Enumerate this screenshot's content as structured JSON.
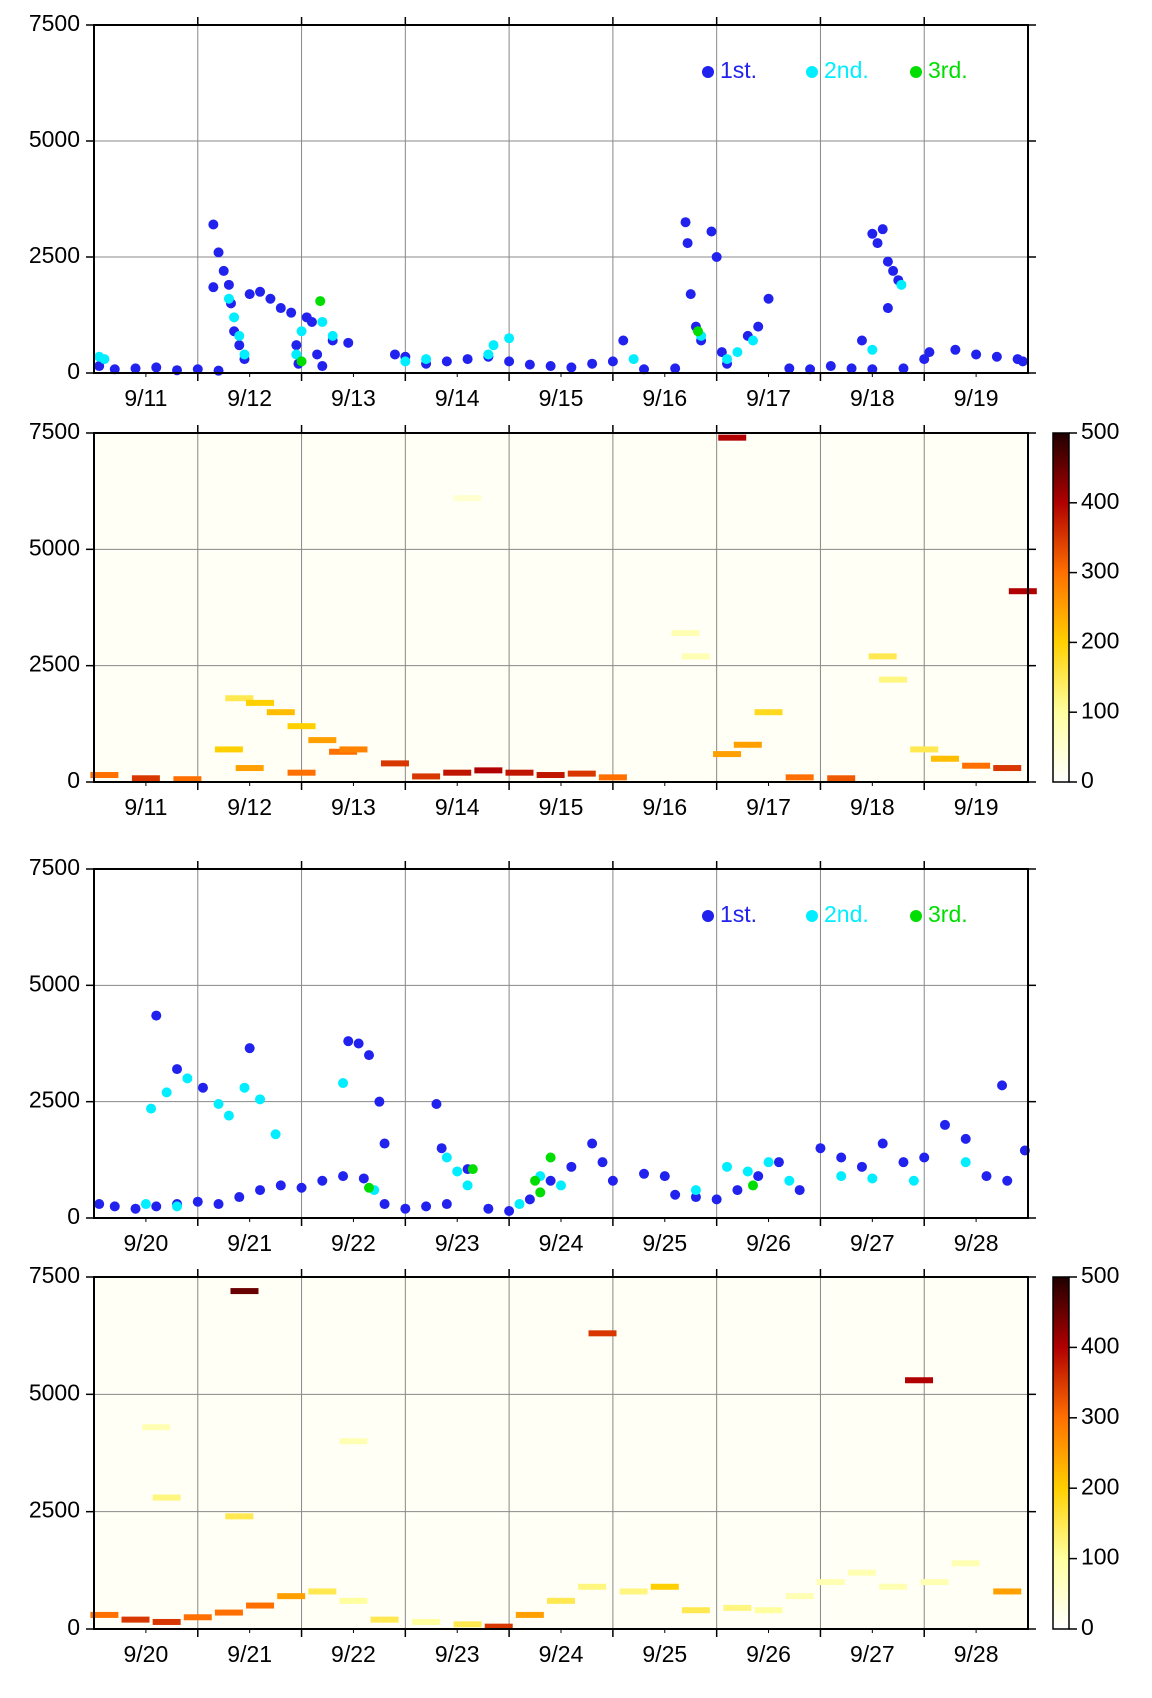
{
  "chart_data": [
    {
      "type": "scatter",
      "xlim": [
        11,
        20
      ],
      "ylim": [
        0,
        7500
      ],
      "yticks": [
        0,
        2500,
        5000,
        7500
      ],
      "xticks": [
        {
          "value": 11.5,
          "label": "9/11"
        },
        {
          "value": 12.5,
          "label": "9/12"
        },
        {
          "value": 13.5,
          "label": "9/13"
        },
        {
          "value": 14.5,
          "label": "9/14"
        },
        {
          "value": 15.5,
          "label": "9/15"
        },
        {
          "value": 16.5,
          "label": "9/16"
        },
        {
          "value": 17.5,
          "label": "9/17"
        },
        {
          "value": 18.5,
          "label": "9/18"
        },
        {
          "value": 19.5,
          "label": "9/19"
        }
      ],
      "xgrid": [
        12,
        13,
        14,
        15,
        16,
        17,
        18,
        19
      ],
      "grid": true,
      "legend": "upper right",
      "series": [
        {
          "name": "1st.",
          "color": "#2222ee",
          "x": [
            11.05,
            11.2,
            11.4,
            11.6,
            11.8,
            12.0,
            12.2,
            12.15,
            12.15,
            12.2,
            12.25,
            12.3,
            12.32,
            12.35,
            12.4,
            12.45,
            12.5,
            12.6,
            12.7,
            12.8,
            12.9,
            12.95,
            12.97,
            13.05,
            13.1,
            13.15,
            13.2,
            13.3,
            13.45,
            13.9,
            14.0,
            14.2,
            14.4,
            14.6,
            14.8,
            15.0,
            15.2,
            15.4,
            15.6,
            15.8,
            16.0,
            16.1,
            16.3,
            16.6,
            16.7,
            16.72,
            16.75,
            16.8,
            16.85,
            16.95,
            17.0,
            17.05,
            17.1,
            17.3,
            17.4,
            17.5,
            17.7,
            17.9,
            18.1,
            18.3,
            18.5,
            18.4,
            18.5,
            18.55,
            18.6,
            18.65,
            18.7,
            18.75,
            18.65,
            18.8,
            19.0,
            19.05,
            19.3,
            19.5,
            19.7,
            19.9,
            19.95
          ],
          "values": [
            150,
            80,
            100,
            120,
            60,
            80,
            50,
            1850,
            3200,
            2600,
            2200,
            1900,
            1500,
            900,
            600,
            300,
            1700,
            1750,
            1600,
            1400,
            1300,
            600,
            200,
            1200,
            1100,
            400,
            150,
            700,
            650,
            400,
            350,
            200,
            250,
            300,
            350,
            250,
            180,
            150,
            120,
            200,
            250,
            700,
            80,
            100,
            3250,
            2800,
            1700,
            1000,
            700,
            3050,
            2500,
            450,
            200,
            800,
            1000,
            1600,
            100,
            80,
            150,
            100,
            80,
            700,
            3000,
            2800,
            3100,
            2400,
            2200,
            2000,
            1400,
            100,
            300,
            450,
            500,
            400,
            350,
            300,
            250
          ]
        },
        {
          "name": "2nd.",
          "color": "#00eeff",
          "x": [
            11.05,
            11.1,
            12.3,
            12.35,
            12.4,
            12.45,
            12.95,
            13.0,
            13.2,
            13.3,
            14.0,
            14.2,
            14.8,
            14.85,
            15.0,
            16.2,
            16.85,
            17.1,
            17.2,
            17.35,
            18.5,
            18.78
          ],
          "values": [
            350,
            300,
            1600,
            1200,
            800,
            400,
            400,
            900,
            1100,
            800,
            250,
            300,
            400,
            600,
            750,
            300,
            800,
            300,
            450,
            700,
            500,
            1900
          ]
        },
        {
          "name": "3rd.",
          "color": "#00dd00",
          "x": [
            13.18,
            13.0,
            16.82
          ],
          "values": [
            1550,
            250,
            900
          ]
        }
      ]
    },
    {
      "type": "heatmap",
      "xlim": [
        11,
        20
      ],
      "ylim": [
        0,
        7500
      ],
      "yticks": [
        0,
        2500,
        5000,
        7500
      ],
      "xticks": [
        {
          "value": 11.5,
          "label": "9/11"
        },
        {
          "value": 12.5,
          "label": "9/12"
        },
        {
          "value": 13.5,
          "label": "9/13"
        },
        {
          "value": 14.5,
          "label": "9/14"
        },
        {
          "value": 15.5,
          "label": "9/15"
        },
        {
          "value": 16.5,
          "label": "9/16"
        },
        {
          "value": 17.5,
          "label": "9/17"
        },
        {
          "value": 18.5,
          "label": "9/18"
        },
        {
          "value": 19.5,
          "label": "9/19"
        }
      ],
      "xgrid": [
        12,
        13,
        14,
        15,
        16,
        17,
        18,
        19
      ],
      "grid": true,
      "clim": [
        0,
        500
      ],
      "cticks": [
        0,
        100,
        200,
        300,
        400,
        500
      ],
      "colormap": [
        "#ffffff",
        "#ffffa0",
        "#ffd000",
        "#ff7000",
        "#b00000",
        "#200000"
      ],
      "x": [
        11.1,
        11.5,
        11.9,
        12.4,
        12.6,
        12.8,
        13.0,
        13.2,
        13.4,
        13.9,
        14.2,
        14.5,
        14.8,
        15.1,
        15.4,
        15.7,
        16.0,
        16.7,
        16.8,
        17.1,
        17.3,
        17.5,
        17.8,
        18.2,
        18.6,
        18.7,
        19.0,
        19.2,
        19.5,
        19.8,
        12.3,
        12.5,
        13.0,
        13.5,
        14.6,
        17.15,
        19.95
      ],
      "y": [
        150,
        80,
        60,
        1800,
        1700,
        1500,
        1200,
        900,
        650,
        400,
        120,
        200,
        250,
        200,
        150,
        180,
        100,
        3200,
        2700,
        600,
        800,
        1500,
        100,
        80,
        2700,
        2200,
        700,
        500,
        350,
        300,
        700,
        300,
        200,
        700,
        6100,
        7400,
        4100
      ],
      "values": [
        300,
        350,
        300,
        150,
        200,
        220,
        200,
        250,
        300,
        350,
        350,
        380,
        400,
        380,
        380,
        350,
        300,
        80,
        80,
        250,
        250,
        180,
        300,
        320,
        150,
        120,
        150,
        220,
        300,
        350,
        200,
        250,
        300,
        280,
        50,
        400,
        400
      ]
    },
    {
      "type": "scatter",
      "xlim": [
        20,
        29
      ],
      "ylim": [
        0,
        7500
      ],
      "yticks": [
        0,
        2500,
        5000,
        7500
      ],
      "xticks": [
        {
          "value": 20.5,
          "label": "9/20"
        },
        {
          "value": 21.5,
          "label": "9/21"
        },
        {
          "value": 22.5,
          "label": "9/22"
        },
        {
          "value": 23.5,
          "label": "9/23"
        },
        {
          "value": 24.5,
          "label": "9/24"
        },
        {
          "value": 25.5,
          "label": "9/25"
        },
        {
          "value": 26.5,
          "label": "9/26"
        },
        {
          "value": 27.5,
          "label": "9/27"
        },
        {
          "value": 28.5,
          "label": "9/28"
        }
      ],
      "xgrid": [
        21,
        22,
        23,
        24,
        25,
        26,
        27,
        28
      ],
      "grid": true,
      "legend": "upper right",
      "series": [
        {
          "name": "1st.",
          "color": "#2222ee",
          "x": [
            20.05,
            20.2,
            20.4,
            20.6,
            20.8,
            21.0,
            21.2,
            21.4,
            21.6,
            21.8,
            22.0,
            22.2,
            22.4,
            22.6,
            22.8,
            23.0,
            23.2,
            23.4,
            23.6,
            23.8,
            24.0,
            24.2,
            24.4,
            24.6,
            24.8,
            24.9,
            25.0,
            25.3,
            25.5,
            25.6,
            25.8,
            26.0,
            26.2,
            26.4,
            26.6,
            26.8,
            27.0,
            27.2,
            27.4,
            27.6,
            27.8,
            28.0,
            28.2,
            28.4,
            28.6,
            28.8,
            28.97,
            28.75,
            20.6,
            20.8,
            21.05,
            21.5,
            22.45,
            22.55,
            22.65,
            22.75,
            22.8,
            23.3,
            23.35
          ],
          "values": [
            300,
            250,
            200,
            250,
            300,
            350,
            300,
            450,
            600,
            700,
            650,
            800,
            900,
            850,
            300,
            200,
            250,
            300,
            1050,
            200,
            150,
            400,
            800,
            1100,
            1600,
            1200,
            800,
            950,
            900,
            500,
            450,
            400,
            600,
            900,
            1200,
            600,
            1500,
            1300,
            1100,
            1600,
            1200,
            1300,
            2000,
            1700,
            900,
            800,
            1450,
            2850,
            4350,
            3200,
            2800,
            3650,
            3800,
            3750,
            3500,
            2500,
            1600,
            2450,
            1500
          ]
        },
        {
          "name": "2nd.",
          "color": "#00eeff",
          "x": [
            20.55,
            20.7,
            20.9,
            21.2,
            21.3,
            21.45,
            21.6,
            21.75,
            20.5,
            20.8,
            22.4,
            22.7,
            23.4,
            23.5,
            23.6,
            24.1,
            24.3,
            24.5,
            25.8,
            26.1,
            26.3,
            26.5,
            26.7,
            27.2,
            27.5,
            27.9,
            28.4
          ],
          "values": [
            2350,
            2700,
            3000,
            2450,
            2200,
            2800,
            2550,
            1800,
            300,
            250,
            2900,
            600,
            1300,
            1000,
            700,
            300,
            900,
            700,
            600,
            1100,
            1000,
            1200,
            800,
            900,
            850,
            800,
            1200
          ]
        },
        {
          "name": "3rd.",
          "color": "#00dd00",
          "x": [
            22.65,
            23.65,
            24.25,
            24.3,
            24.4,
            26.35
          ],
          "values": [
            650,
            1050,
            800,
            550,
            1300,
            700
          ]
        }
      ]
    },
    {
      "type": "heatmap",
      "xlim": [
        20,
        29
      ],
      "ylim": [
        0,
        7500
      ],
      "yticks": [
        0,
        2500,
        5000,
        7500
      ],
      "xticks": [
        {
          "value": 20.5,
          "label": "9/20"
        },
        {
          "value": 21.5,
          "label": "9/21"
        },
        {
          "value": 22.5,
          "label": "9/22"
        },
        {
          "value": 23.5,
          "label": "9/23"
        },
        {
          "value": 24.5,
          "label": "9/24"
        },
        {
          "value": 25.5,
          "label": "9/25"
        },
        {
          "value": 26.5,
          "label": "9/26"
        },
        {
          "value": 27.5,
          "label": "9/27"
        },
        {
          "value": 28.5,
          "label": "9/28"
        }
      ],
      "xgrid": [
        21,
        22,
        23,
        24,
        25,
        26,
        27,
        28
      ],
      "grid": true,
      "clim": [
        0,
        500
      ],
      "cticks": [
        0,
        100,
        200,
        300,
        400,
        500
      ],
      "colormap": [
        "#ffffff",
        "#ffffa0",
        "#ffd000",
        "#ff7000",
        "#b00000",
        "#200000"
      ],
      "x": [
        20.1,
        20.4,
        20.7,
        21.0,
        21.3,
        21.6,
        21.9,
        22.2,
        22.5,
        22.8,
        23.2,
        23.6,
        23.9,
        24.2,
        24.5,
        24.8,
        25.2,
        25.5,
        25.8,
        26.2,
        26.5,
        26.8,
        27.1,
        27.4,
        27.7,
        28.1,
        28.4,
        28.8,
        20.6,
        20.7,
        21.4,
        21.45,
        22.5,
        24.9,
        27.95
      ],
      "y": [
        300,
        200,
        150,
        250,
        350,
        500,
        700,
        800,
        600,
        200,
        150,
        100,
        50,
        300,
        600,
        900,
        800,
        900,
        400,
        450,
        400,
        700,
        1000,
        1200,
        900,
        1000,
        1400,
        800,
        4300,
        2800,
        2400,
        7200,
        4000,
        6300,
        5300
      ],
      "values": [
        300,
        350,
        350,
        300,
        300,
        300,
        250,
        150,
        100,
        150,
        100,
        150,
        350,
        250,
        150,
        120,
        120,
        200,
        150,
        120,
        100,
        80,
        80,
        80,
        80,
        80,
        80,
        250,
        80,
        120,
        150,
        450,
        80,
        350,
        400
      ]
    }
  ]
}
